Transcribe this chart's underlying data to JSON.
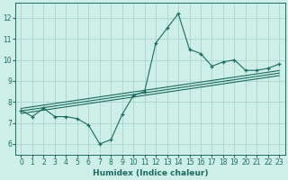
{
  "xlabel": "Humidex (Indice chaleur)",
  "ylabel": "",
  "bg_color": "#ceeee8",
  "grid_color": "#aad4ce",
  "line_color": "#1a6b5e",
  "xlim": [
    -0.5,
    23.5
  ],
  "ylim": [
    5.5,
    12.7
  ],
  "xticks": [
    0,
    1,
    2,
    3,
    4,
    5,
    6,
    7,
    8,
    9,
    10,
    11,
    12,
    13,
    14,
    15,
    16,
    17,
    18,
    19,
    20,
    21,
    22,
    23
  ],
  "yticks": [
    6,
    7,
    8,
    9,
    10,
    11,
    12
  ],
  "main_line_x": [
    0,
    1,
    2,
    3,
    4,
    5,
    6,
    7,
    8,
    9,
    10,
    11,
    12,
    13,
    14,
    15,
    16,
    17,
    18,
    19,
    20,
    21,
    22,
    23
  ],
  "main_line_y": [
    7.6,
    7.3,
    7.7,
    7.3,
    7.3,
    7.2,
    6.9,
    6.0,
    6.2,
    7.4,
    8.3,
    8.5,
    10.8,
    11.5,
    12.2,
    10.5,
    10.3,
    9.7,
    9.9,
    10.0,
    9.5,
    9.5,
    9.6,
    9.8
  ],
  "reg_lines": [
    {
      "x": [
        0,
        23
      ],
      "y": [
        7.45,
        9.25
      ]
    },
    {
      "x": [
        0,
        23
      ],
      "y": [
        7.57,
        9.37
      ]
    },
    {
      "x": [
        0,
        23
      ],
      "y": [
        7.69,
        9.49
      ]
    }
  ],
  "tick_fontsize": 5.5,
  "xlabel_fontsize": 6.5
}
